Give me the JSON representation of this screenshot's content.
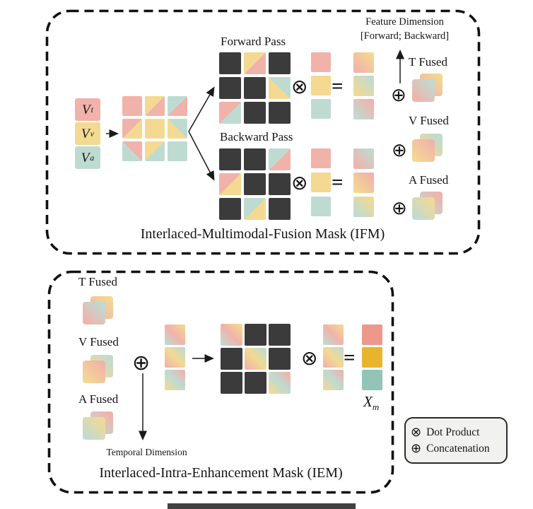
{
  "token_colors": {
    "P": "#f1b2aa",
    "Y": "#f3d992",
    "A": "#bedbd2",
    "D": "#3b3b3b",
    "S": "#ee978b",
    "G": "#e9b42d",
    "E": "#92c5b7"
  },
  "modalities": [
    {
      "symbol": "V",
      "subscript": "t",
      "color_token": "P"
    },
    {
      "symbol": "V",
      "subscript": "v",
      "color_token": "Y"
    },
    {
      "symbol": "V",
      "subscript": "a",
      "color_token": "A"
    }
  ],
  "ifm": {
    "caption": "Interlaced-Multimodal-Fusion Mask (IFM)",
    "forward_label": "Forward Pass",
    "backward_label": "Backward Pass",
    "feature_dimension_line1": "Feature Dimension",
    "feature_dimension_line2": "[Forward; Backward]",
    "fused_labels": {
      "t": "T Fused",
      "v": "V Fused",
      "a": "A Fused"
    },
    "grids": {
      "input": [
        [
          "P",
          "s135:Y,P",
          "s135:A,P"
        ],
        [
          "s135:P,Y",
          "Y",
          "s45:Y,A"
        ],
        [
          "s45:A,P",
          "s135:Y,A",
          "A"
        ]
      ],
      "forward_mask": [
        [
          "D",
          "s135:Y,P",
          "D"
        ],
        [
          "D",
          "D",
          "s45:Y,A"
        ],
        [
          "s135:P,A",
          "D",
          "D"
        ]
      ],
      "forward_vector": [
        [
          "P"
        ],
        [
          "Y"
        ],
        [
          "A"
        ]
      ],
      "forward_result": [
        [
          "g:P,Y"
        ],
        [
          "g:Y,A"
        ],
        [
          "g:A,P"
        ]
      ],
      "backward_mask": [
        [
          "D",
          "D",
          "s135:A,P"
        ],
        [
          "s135:P,Y",
          "D",
          "D"
        ],
        [
          "D",
          "s135:A,Y",
          "D"
        ]
      ],
      "backward_vector": [
        [
          "P"
        ],
        [
          "Y"
        ],
        [
          "A"
        ]
      ],
      "backward_result": [
        [
          "g:P,A"
        ],
        [
          "g:Y,P"
        ],
        [
          "g:A,Y"
        ]
      ]
    }
  },
  "iem": {
    "caption": "Interlaced-Intra-Enhancement Mask (IEM)",
    "fused_labels": {
      "t": "T Fused",
      "v": "V Fused",
      "a": "A Fused"
    },
    "temporal_label": "Temporal Dimension",
    "output_symbol": "X",
    "output_subscript": "m",
    "grids": {
      "concat_column": [
        [
          "b:A,P,Y"
        ],
        [
          "b:P,Y,A"
        ],
        [
          "b:Y,A,P"
        ]
      ],
      "mask": [
        [
          "b:A,P,Y",
          "D",
          "D"
        ],
        [
          "D",
          "b:P,Y,A",
          "D"
        ],
        [
          "D",
          "D",
          "b:Y,A,P"
        ]
      ],
      "vector": [
        [
          "b:A,P,Y"
        ],
        [
          "b:P,Y,A"
        ],
        [
          "b:Y,A,P"
        ]
      ],
      "result": [
        [
          "S"
        ],
        [
          "G"
        ],
        [
          "E"
        ]
      ]
    }
  },
  "pairs": {
    "t": {
      "back": "g:P,Y",
      "front": "g:P,A"
    },
    "v": {
      "back": "g:Y,A",
      "front": "g:Y,P"
    },
    "a": {
      "back": "g:A,P",
      "front": "g:A,Y"
    }
  },
  "operators": {
    "dot_product": "⊗",
    "concatenation": "⊕",
    "equals": "="
  },
  "legend": {
    "items": [
      {
        "symbol": "⊗",
        "label": "Dot Product"
      },
      {
        "symbol": "⊕",
        "label": "Concatenation"
      }
    ]
  }
}
